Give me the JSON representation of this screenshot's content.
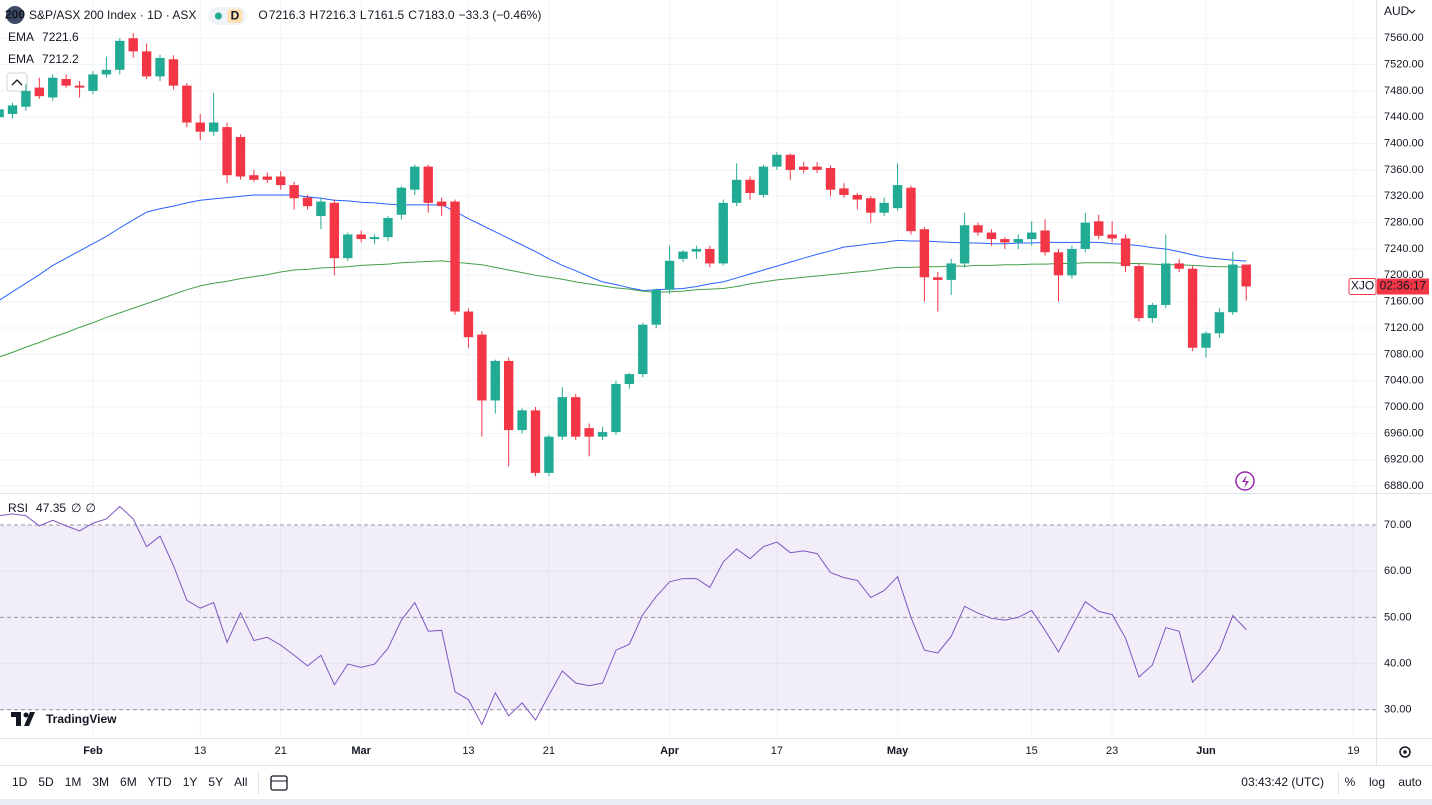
{
  "header": {
    "badge": "200",
    "title": "S&P/ASX 200 Index · 1D · ASX",
    "market": "D",
    "ohlc": [
      [
        "O",
        "7216.3"
      ],
      [
        "H",
        "7216.3"
      ],
      [
        "L",
        "7161.5"
      ],
      [
        "C",
        "7183.0"
      ]
    ],
    "change": "−33.3 (−0.46%)",
    "currency": "AUD"
  },
  "logo": "TradingView",
  "toolbar": {
    "ranges": [
      "1D",
      "5D",
      "1M",
      "3M",
      "6M",
      "YTD",
      "1Y",
      "5Y",
      "All"
    ],
    "clock": "03:43:42 (UTC)",
    "options": [
      "%",
      "log",
      "auto"
    ]
  },
  "chart_data": [
    {
      "type": "candlestick",
      "symbol_tag": "XJO",
      "countdown": "02:36:17",
      "up_color": "#22ab94",
      "down_color": "#f23645",
      "grid": true,
      "ylim": [
        6871,
        7618
      ],
      "yticks": [
        {
          "value": 6880,
          "label": "6880.00"
        },
        {
          "value": 6920,
          "label": "6920.00"
        },
        {
          "value": 6960,
          "label": "6960.00"
        },
        {
          "value": 7000,
          "label": "7000.00"
        },
        {
          "value": 7040,
          "label": "7040.00"
        },
        {
          "value": 7080,
          "label": "7080.00"
        },
        {
          "value": 7120,
          "label": "7120.00"
        },
        {
          "value": 7160,
          "label": "7160.00"
        },
        {
          "value": 7200,
          "label": "7200.00"
        },
        {
          "value": 7240,
          "label": "7240.00"
        },
        {
          "value": 7280,
          "label": "7280.00"
        },
        {
          "value": 7320,
          "label": "7320.00"
        },
        {
          "value": 7360,
          "label": "7360.00"
        },
        {
          "value": 7400,
          "label": "7400.00"
        },
        {
          "value": 7440,
          "label": "7440.00"
        },
        {
          "value": 7480,
          "label": "7480.00"
        },
        {
          "value": 7520,
          "label": "7520.00"
        },
        {
          "value": 7560,
          "label": "7560.00"
        }
      ],
      "categories": [
        null,
        null,
        null,
        null,
        null,
        null,
        null,
        "Feb",
        null,
        null,
        null,
        null,
        null,
        null,
        null,
        "13",
        null,
        null,
        null,
        null,
        null,
        "21",
        null,
        null,
        null,
        null,
        null,
        "Mar",
        null,
        null,
        null,
        null,
        null,
        null,
        null,
        "13",
        null,
        null,
        null,
        null,
        null,
        "21",
        null,
        null,
        null,
        null,
        null,
        null,
        null,
        null,
        "Apr",
        null,
        null,
        null,
        null,
        null,
        null,
        null,
        "17",
        null,
        null,
        null,
        null,
        null,
        null,
        null,
        null,
        "May",
        null,
        null,
        null,
        null,
        null,
        null,
        null,
        null,
        null,
        "15",
        null,
        null,
        null,
        null,
        null,
        "23",
        null,
        null,
        null,
        null,
        null,
        null,
        "Jun",
        null,
        null,
        null,
        null,
        null,
        null,
        null,
        null,
        null,
        null,
        "19"
      ],
      "open": [
        7440,
        7445,
        7456,
        7485,
        7470,
        7498,
        7488,
        7480,
        7505,
        7512,
        7560,
        7540,
        7502,
        7528,
        7488,
        7432,
        7418,
        7425,
        7410,
        7352,
        7350,
        7350,
        7337,
        7318,
        7290,
        7310,
        7226,
        7262,
        7255,
        7258,
        7292,
        7330,
        7365,
        7312,
        7312,
        7145,
        7110,
        7010,
        7070,
        6965,
        6995,
        6900,
        6955,
        7015,
        6968,
        6955,
        6962,
        7035,
        7050,
        7125,
        7178,
        7225,
        7236,
        7240,
        7218,
        7310,
        7345,
        7322,
        7365,
        7383,
        7365,
        7365,
        7363,
        7332,
        7322,
        7317,
        7295,
        7302,
        7333,
        7270,
        7197,
        7193,
        7218,
        7276,
        7265,
        7255,
        7250,
        7255,
        7268,
        7235,
        7200,
        7240,
        7282,
        7262,
        7256,
        7214,
        7135,
        7155,
        7218,
        7210,
        7090,
        7112,
        7144,
        7216.3,
        null,
        null,
        null,
        null,
        null,
        null,
        null,
        null
      ],
      "high": [
        7455,
        7462,
        7490,
        7500,
        7505,
        7505,
        7495,
        7510,
        7532,
        7560,
        7568,
        7552,
        7535,
        7534,
        7492,
        7445,
        7477,
        7432,
        7414,
        7360,
        7356,
        7358,
        7342,
        7322,
        7318,
        7315,
        7265,
        7268,
        7262,
        7290,
        7335,
        7368,
        7368,
        7318,
        7315,
        7150,
        7115,
        7072,
        7075,
        6998,
        7000,
        6958,
        7030,
        7020,
        6975,
        6970,
        7040,
        7052,
        7128,
        7180,
        7245,
        7238,
        7245,
        7245,
        7315,
        7370,
        7350,
        7368,
        7387,
        7385,
        7372,
        7372,
        7367,
        7340,
        7325,
        7320,
        7318,
        7370,
        7336,
        7273,
        7205,
        7225,
        7295,
        7280,
        7270,
        7258,
        7262,
        7282,
        7285,
        7240,
        7245,
        7295,
        7292,
        7282,
        7262,
        7218,
        7158,
        7262,
        7225,
        7214,
        7115,
        7150,
        7236,
        7216.3,
        null,
        null,
        null,
        null,
        null,
        null,
        null,
        null
      ],
      "low": [
        7432,
        7438,
        7450,
        7468,
        7465,
        7485,
        7470,
        7475,
        7500,
        7505,
        7530,
        7498,
        7495,
        7482,
        7425,
        7405,
        7412,
        7340,
        7345,
        7342,
        7340,
        7330,
        7300,
        7300,
        7270,
        7200,
        7222,
        7250,
        7248,
        7252,
        7285,
        7322,
        7295,
        7290,
        7140,
        7090,
        6955,
        6990,
        6910,
        6960,
        6895,
        6895,
        6950,
        6950,
        6925,
        6950,
        6958,
        7028,
        7045,
        7120,
        7172,
        7220,
        7225,
        7212,
        7215,
        7305,
        7315,
        7318,
        7360,
        7345,
        7355,
        7355,
        7320,
        7318,
        7300,
        7280,
        7290,
        7298,
        7262,
        7160,
        7145,
        7170,
        7212,
        7260,
        7245,
        7240,
        7240,
        7245,
        7230,
        7160,
        7195,
        7235,
        7255,
        7250,
        7205,
        7130,
        7128,
        7150,
        7205,
        7085,
        7075,
        7105,
        7140,
        7161.5,
        null,
        null,
        null,
        null,
        null,
        null,
        null,
        null
      ],
      "close": [
        7452,
        7458,
        7480,
        7472,
        7500,
        7488,
        7485,
        7505,
        7512,
        7556,
        7540,
        7502,
        7530,
        7488,
        7432,
        7418,
        7432,
        7352,
        7350,
        7345,
        7345,
        7337,
        7317,
        7305,
        7312,
        7226,
        7262,
        7255,
        7258,
        7287,
        7333,
        7365,
        7310,
        7305,
        7145,
        7106,
        7010,
        7070,
        6965,
        6995,
        6900,
        6955,
        7015,
        6955,
        6955,
        6962,
        7035,
        7050,
        7125,
        7178,
        7222,
        7236,
        7240,
        7218,
        7310,
        7345,
        7325,
        7365,
        7383,
        7360,
        7360,
        7360,
        7330,
        7322,
        7315,
        7295,
        7310,
        7337,
        7267,
        7197,
        7193,
        7218,
        7276,
        7265,
        7255,
        7250,
        7255,
        7265,
        7235,
        7200,
        7240,
        7280,
        7260,
        7256,
        7214,
        7135,
        7155,
        7218,
        7210,
        7090,
        7112,
        7144,
        7216.3,
        7183.0,
        null,
        null,
        null,
        null,
        null,
        null,
        null,
        null
      ],
      "series": [
        {
          "name": "EMA",
          "color": "#2962ff",
          "values": [
            7162,
            7175,
            7188,
            7201,
            7215,
            7226,
            7237,
            7248,
            7259,
            7272,
            7284,
            7296,
            7301,
            7305,
            7310,
            7314,
            7316,
            7318,
            7320,
            7322,
            7322,
            7322,
            7322,
            7319,
            7317,
            7314,
            7313,
            7311,
            7310,
            7308,
            7307,
            7307,
            7307,
            7307,
            7297,
            7286,
            7276,
            7266,
            7256,
            7246,
            7236,
            7225,
            7215,
            7207,
            7198,
            7190,
            7186,
            7181,
            7177,
            7178,
            7179,
            7180,
            7183,
            7187,
            7190,
            7196,
            7202,
            7208,
            7214,
            7220,
            7226,
            7232,
            7237,
            7243,
            7245,
            7248,
            7250,
            7253,
            7252,
            7252,
            7251,
            7250,
            7249,
            7249,
            7248,
            7248,
            7249,
            7249,
            7250,
            7250,
            7250,
            7250,
            7250,
            7248,
            7247,
            7245,
            7242,
            7240,
            7236,
            7231,
            7227,
            7225,
            7223,
            7221.6,
            null,
            null,
            null,
            null,
            null,
            null,
            null,
            null
          ]
        },
        {
          "name": "EMA",
          "color": "#43a047",
          "values": [
            7076,
            7083,
            7091,
            7098,
            7106,
            7113,
            7121,
            7128,
            7136,
            7143,
            7150,
            7157,
            7164,
            7171,
            7178,
            7184,
            7188,
            7191,
            7195,
            7198,
            7201,
            7205,
            7208,
            7209,
            7211,
            7212,
            7213,
            7215,
            7216,
            7217,
            7219,
            7220,
            7221,
            7222,
            7220,
            7218,
            7216,
            7212,
            7208,
            7204,
            7200,
            7197,
            7194,
            7190,
            7187,
            7184,
            7181,
            7179,
            7176,
            7174,
            7175,
            7176,
            7178,
            7179,
            7180,
            7183,
            7187,
            7190,
            7193,
            7195,
            7197,
            7199,
            7201,
            7203,
            7205,
            7207,
            7210,
            7212,
            7212,
            7213,
            7213,
            7214,
            7214,
            7215,
            7215,
            7216,
            7216,
            7217,
            7217,
            7218,
            7218,
            7219,
            7219,
            7219,
            7218,
            7218,
            7217,
            7216,
            7216,
            7215,
            7214,
            7213,
            7213,
            7212.2,
            null,
            null,
            null,
            null,
            null,
            null,
            null,
            null
          ]
        }
      ]
    },
    {
      "type": "line",
      "band_color": "#7e57c2",
      "status": [
        "∅",
        "∅"
      ],
      "ylim": [
        23.9,
        76.7
      ],
      "yticks": [
        {
          "value": 70,
          "label": "70.00",
          "style": "dashed"
        },
        {
          "value": 60,
          "label": "60.00"
        },
        {
          "value": 50,
          "label": "50.00",
          "style": "dashed"
        },
        {
          "value": 40,
          "label": "40.00"
        },
        {
          "value": 30,
          "label": "30.00",
          "style": "dashed"
        }
      ],
      "series": [
        {
          "name": "RSI",
          "color": "#7e57c2",
          "values": [
            72,
            72.4,
            72,
            69.8,
            71,
            69.8,
            68.7,
            70.4,
            71.3,
            74,
            71.3,
            65.3,
            67.6,
            61.2,
            53.7,
            52,
            53.2,
            44.6,
            51,
            45,
            45.7,
            44,
            41.8,
            39.5,
            41.8,
            35.4,
            39.9,
            39.2,
            39.9,
            43.3,
            49.4,
            53.2,
            47,
            47.2,
            33.9,
            32.2,
            26.8,
            33.7,
            28.7,
            31.5,
            27.8,
            33.2,
            38.4,
            35.8,
            35.2,
            35.8,
            42.9,
            44.2,
            50.6,
            54.5,
            57.7,
            58.4,
            58.4,
            56.5,
            62,
            64.8,
            62.7,
            65.3,
            66.3,
            64,
            64.4,
            63.8,
            59.7,
            58.6,
            58,
            54.3,
            55.8,
            58.8,
            50,
            42.9,
            42.3,
            45.9,
            52.4,
            50.9,
            49.8,
            49.4,
            50,
            51.5,
            47.2,
            42.5,
            48,
            53.4,
            51.3,
            50.6,
            45.5,
            37.1,
            39.7,
            47.8,
            47,
            36,
            39,
            42.9,
            50.4,
            47.35,
            null,
            null,
            null,
            null,
            null,
            null,
            null,
            null
          ]
        }
      ]
    }
  ]
}
